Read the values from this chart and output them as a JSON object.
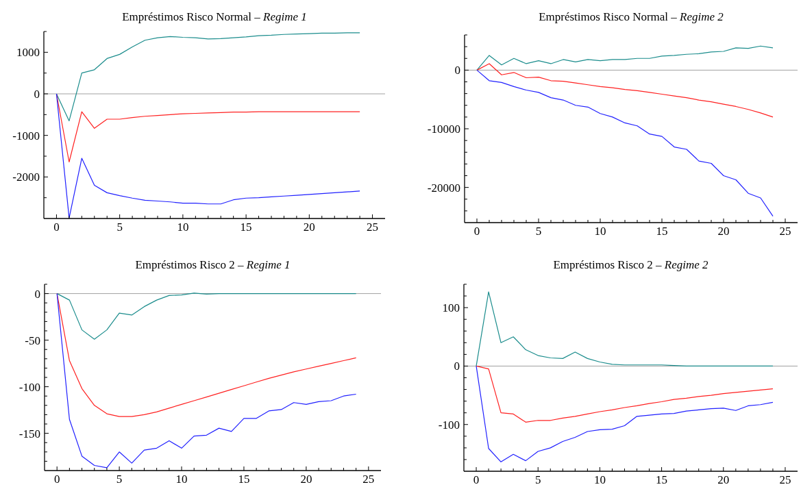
{
  "chart_data": [
    {
      "type": "line",
      "title": "Empréstimos Risco Normal – Regime 1",
      "x": [
        0,
        1,
        2,
        3,
        4,
        5,
        6,
        7,
        8,
        9,
        10,
        11,
        12,
        13,
        14,
        15,
        16,
        17,
        18,
        19,
        20,
        21,
        22,
        23,
        24
      ],
      "xlim": [
        -1,
        26
      ],
      "xticks": [
        0,
        {
          "value": 1,
          "label": null
        },
        {
          "value": 2,
          "label": null
        },
        {
          "value": 3,
          "label": null
        },
        {
          "value": 4,
          "label": null
        },
        5,
        {
          "value": 6,
          "label": null
        },
        {
          "value": 7,
          "label": null
        },
        {
          "value": 8,
          "label": null
        },
        {
          "value": 9,
          "label": null
        },
        10,
        {
          "value": 11,
          "label": null
        },
        {
          "value": 12,
          "label": null
        },
        {
          "value": 13,
          "label": null
        },
        {
          "value": 14,
          "label": null
        },
        15,
        {
          "value": 16,
          "label": null
        },
        {
          "value": 17,
          "label": null
        },
        {
          "value": 18,
          "label": null
        },
        {
          "value": 19,
          "label": null
        },
        20,
        {
          "value": 21,
          "label": null
        },
        {
          "value": 22,
          "label": null
        },
        {
          "value": 23,
          "label": null
        },
        {
          "value": 24,
          "label": null
        },
        25
      ],
      "ylim": [
        -3000,
        1500
      ],
      "yticks": [
        {
          "value": -2500,
          "label": null
        },
        -2000,
        {
          "value": -1500,
          "label": null
        },
        -1000,
        {
          "value": -500,
          "label": null
        },
        0,
        {
          "value": 500,
          "label": null
        },
        1000,
        {
          "value": 1500,
          "label": null
        }
      ],
      "ref_lines": [
        {
          "axis": "y",
          "value": 0,
          "color": "#a0a0a0"
        }
      ],
      "series": [
        {
          "color": "#1a8c8c",
          "values": [
            0,
            -650,
            500,
            580,
            850,
            950,
            1130,
            1290,
            1350,
            1380,
            1360,
            1350,
            1320,
            1330,
            1350,
            1370,
            1400,
            1410,
            1430,
            1440,
            1450,
            1460,
            1460,
            1470,
            1470
          ]
        },
        {
          "color": "#ff2020",
          "values": [
            0,
            -1640,
            -430,
            -830,
            -610,
            -610,
            -570,
            -540,
            -520,
            -500,
            -480,
            -470,
            -460,
            -450,
            -440,
            -440,
            -430,
            -430,
            -430,
            -430,
            -430,
            -430,
            -430,
            -430,
            -430
          ]
        },
        {
          "color": "#2020ff",
          "values": [
            0,
            -2990,
            -1550,
            -2200,
            -2380,
            -2450,
            -2510,
            -2560,
            -2580,
            -2600,
            -2630,
            -2630,
            -2650,
            -2650,
            -2550,
            -2510,
            -2500,
            -2480,
            -2460,
            -2440,
            -2420,
            -2400,
            -2380,
            -2360,
            -2340
          ]
        }
      ]
    },
    {
      "type": "line",
      "title": "Empréstimos Risco Normal – Regime 2",
      "x": [
        0,
        1,
        2,
        3,
        4,
        5,
        6,
        7,
        8,
        9,
        10,
        11,
        12,
        13,
        14,
        15,
        16,
        17,
        18,
        19,
        20,
        21,
        22,
        23,
        24
      ],
      "xlim": [
        -1,
        26
      ],
      "xticks": [
        0,
        {
          "value": 1,
          "label": null
        },
        {
          "value": 2,
          "label": null
        },
        {
          "value": 3,
          "label": null
        },
        {
          "value": 4,
          "label": null
        },
        5,
        {
          "value": 6,
          "label": null
        },
        {
          "value": 7,
          "label": null
        },
        {
          "value": 8,
          "label": null
        },
        {
          "value": 9,
          "label": null
        },
        10,
        {
          "value": 11,
          "label": null
        },
        {
          "value": 12,
          "label": null
        },
        {
          "value": 13,
          "label": null
        },
        {
          "value": 14,
          "label": null
        },
        15,
        {
          "value": 16,
          "label": null
        },
        {
          "value": 17,
          "label": null
        },
        {
          "value": 18,
          "label": null
        },
        {
          "value": 19,
          "label": null
        },
        20,
        {
          "value": 21,
          "label": null
        },
        {
          "value": 22,
          "label": null
        },
        {
          "value": 23,
          "label": null
        },
        {
          "value": 24,
          "label": null
        },
        25
      ],
      "ylim": [
        -26000,
        6000
      ],
      "yticks": [
        {
          "value": -24000,
          "label": null
        },
        {
          "value": -22000,
          "label": null
        },
        -20000,
        {
          "value": -18000,
          "label": null
        },
        {
          "value": -16000,
          "label": null
        },
        {
          "value": -14000,
          "label": null
        },
        {
          "value": -12000,
          "label": null
        },
        -10000,
        {
          "value": -8000,
          "label": null
        },
        {
          "value": -6000,
          "label": null
        },
        {
          "value": -4000,
          "label": null
        },
        {
          "value": -2000,
          "label": null
        },
        0,
        {
          "value": 2000,
          "label": null
        },
        {
          "value": 4000,
          "label": null
        },
        {
          "value": 6000,
          "label": null
        }
      ],
      "ref_lines": [
        {
          "axis": "y",
          "value": 0,
          "color": "#a0a0a0"
        }
      ],
      "series": [
        {
          "color": "#1a8c8c",
          "values": [
            0,
            2500,
            900,
            2000,
            1100,
            1600,
            1100,
            1800,
            1400,
            1800,
            1600,
            1800,
            1800,
            2000,
            2000,
            2400,
            2500,
            2700,
            2800,
            3100,
            3200,
            3800,
            3700,
            4100,
            3800
          ]
        },
        {
          "color": "#ff2020",
          "values": [
            0,
            1100,
            -800,
            -400,
            -1300,
            -1200,
            -1800,
            -1900,
            -2200,
            -2500,
            -2800,
            -3000,
            -3300,
            -3500,
            -3800,
            -4100,
            -4400,
            -4700,
            -5100,
            -5400,
            -5800,
            -6200,
            -6700,
            -7300,
            -8000
          ]
        },
        {
          "color": "#2020ff",
          "values": [
            0,
            -1800,
            -2100,
            -2800,
            -3400,
            -3800,
            -4700,
            -5100,
            -6000,
            -6300,
            -7400,
            -8000,
            -9000,
            -9500,
            -10900,
            -11300,
            -13100,
            -13500,
            -15500,
            -15900,
            -18000,
            -18700,
            -21000,
            -21800,
            -24900
          ]
        }
      ]
    },
    {
      "type": "line",
      "title": "Empréstimos Risco 2 – Regime 1",
      "x": [
        0,
        1,
        2,
        3,
        4,
        5,
        6,
        7,
        8,
        9,
        10,
        11,
        12,
        13,
        14,
        15,
        16,
        17,
        18,
        19,
        20,
        21,
        22,
        23,
        24
      ],
      "xlim": [
        -1,
        26
      ],
      "xticks": [
        0,
        {
          "value": 1,
          "label": null
        },
        {
          "value": 2,
          "label": null
        },
        {
          "value": 3,
          "label": null
        },
        {
          "value": 4,
          "label": null
        },
        5,
        {
          "value": 6,
          "label": null
        },
        {
          "value": 7,
          "label": null
        },
        {
          "value": 8,
          "label": null
        },
        {
          "value": 9,
          "label": null
        },
        10,
        {
          "value": 11,
          "label": null
        },
        {
          "value": 12,
          "label": null
        },
        {
          "value": 13,
          "label": null
        },
        {
          "value": 14,
          "label": null
        },
        15,
        {
          "value": 16,
          "label": null
        },
        {
          "value": 17,
          "label": null
        },
        {
          "value": 18,
          "label": null
        },
        {
          "value": 19,
          "label": null
        },
        20,
        {
          "value": 21,
          "label": null
        },
        {
          "value": 22,
          "label": null
        },
        {
          "value": 23,
          "label": null
        },
        {
          "value": 24,
          "label": null
        },
        25
      ],
      "ylim": [
        -190,
        10
      ],
      "yticks": [
        {
          "value": -180,
          "label": null
        },
        {
          "value": -170,
          "label": null
        },
        {
          "value": -160,
          "label": null
        },
        -150,
        {
          "value": -140,
          "label": null
        },
        {
          "value": -130,
          "label": null
        },
        {
          "value": -120,
          "label": null
        },
        {
          "value": -110,
          "label": null
        },
        -100,
        {
          "value": -90,
          "label": null
        },
        {
          "value": -80,
          "label": null
        },
        {
          "value": -70,
          "label": null
        },
        {
          "value": -60,
          "label": null
        },
        -50,
        {
          "value": -40,
          "label": null
        },
        {
          "value": -30,
          "label": null
        },
        {
          "value": -20,
          "label": null
        },
        {
          "value": -10,
          "label": null
        },
        0,
        {
          "value": 10,
          "label": null
        }
      ],
      "ref_lines": [
        {
          "axis": "y",
          "value": 0,
          "color": "#a0a0a0"
        }
      ],
      "series": [
        {
          "color": "#1a8c8c",
          "values": [
            0,
            -7,
            -39,
            -49,
            -39,
            -21,
            -23,
            -14,
            -7,
            -2,
            -1.5,
            0.5,
            -0.5,
            0,
            0,
            0,
            0,
            0,
            0,
            0,
            0,
            0,
            0,
            0,
            0
          ]
        },
        {
          "color": "#ff2020",
          "values": [
            0,
            -72,
            -102,
            -120,
            -129,
            -132,
            -132,
            -130,
            -127,
            -123,
            -119,
            -115,
            -111,
            -107,
            -103,
            -99,
            -95,
            -91,
            -87.5,
            -84,
            -81,
            -78,
            -75,
            -72,
            -69
          ]
        },
        {
          "color": "#2020ff",
          "values": [
            0,
            -135,
            -174.5,
            -184.5,
            -187,
            -170,
            -182,
            -168,
            -166,
            -158,
            -166,
            -153,
            -152,
            -144.5,
            -148,
            -134,
            -134,
            -126,
            -124.5,
            -117,
            -119,
            -116,
            -115,
            -110,
            -108
          ]
        }
      ]
    },
    {
      "type": "line",
      "title": "Empréstimos Risco 2 – Regime 2",
      "x": [
        0,
        1,
        2,
        3,
        4,
        5,
        6,
        7,
        8,
        9,
        10,
        11,
        12,
        13,
        14,
        15,
        16,
        17,
        18,
        19,
        20,
        21,
        22,
        23,
        24
      ],
      "xlim": [
        -1,
        26
      ],
      "xticks": [
        0,
        {
          "value": 1,
          "label": null
        },
        {
          "value": 2,
          "label": null
        },
        {
          "value": 3,
          "label": null
        },
        {
          "value": 4,
          "label": null
        },
        5,
        {
          "value": 6,
          "label": null
        },
        {
          "value": 7,
          "label": null
        },
        {
          "value": 8,
          "label": null
        },
        {
          "value": 9,
          "label": null
        },
        10,
        {
          "value": 11,
          "label": null
        },
        {
          "value": 12,
          "label": null
        },
        {
          "value": 13,
          "label": null
        },
        {
          "value": 14,
          "label": null
        },
        15,
        {
          "value": 16,
          "label": null
        },
        {
          "value": 17,
          "label": null
        },
        {
          "value": 18,
          "label": null
        },
        {
          "value": 19,
          "label": null
        },
        20,
        {
          "value": 21,
          "label": null
        },
        {
          "value": 22,
          "label": null
        },
        {
          "value": 23,
          "label": null
        },
        {
          "value": 24,
          "label": null
        },
        25
      ],
      "ylim": [
        -180,
        140
      ],
      "yticks": [
        {
          "value": -160,
          "label": null
        },
        {
          "value": -140,
          "label": null
        },
        {
          "value": -120,
          "label": null
        },
        -100,
        {
          "value": -80,
          "label": null
        },
        {
          "value": -60,
          "label": null
        },
        {
          "value": -40,
          "label": null
        },
        {
          "value": -20,
          "label": null
        },
        0,
        {
          "value": 20,
          "label": null
        },
        {
          "value": 40,
          "label": null
        },
        {
          "value": 60,
          "label": null
        },
        {
          "value": 80,
          "label": null
        },
        100,
        {
          "value": 120,
          "label": null
        },
        {
          "value": 140,
          "label": null
        }
      ],
      "ref_lines": [
        {
          "axis": "y",
          "value": 0,
          "color": "#a0a0a0"
        }
      ],
      "series": [
        {
          "color": "#1a8c8c",
          "values": [
            0,
            127,
            40,
            50,
            28,
            18,
            14,
            13,
            24,
            13,
            7,
            3,
            2,
            2,
            2,
            2,
            1,
            0,
            0,
            0,
            0,
            0,
            0,
            0,
            0
          ]
        },
        {
          "color": "#ff2020",
          "values": [
            0,
            -5,
            -80,
            -82,
            -96,
            -93,
            -93,
            -89,
            -86,
            -82,
            -78,
            -75,
            -71,
            -68,
            -64,
            -61,
            -57,
            -55,
            -52,
            -50,
            -47,
            -45,
            -43,
            -41,
            -39
          ]
        },
        {
          "color": "#2020ff",
          "values": [
            0,
            -141,
            -164,
            -151,
            -162,
            -146,
            -140,
            -129,
            -122,
            -112,
            -109,
            -108,
            -102,
            -86,
            -84,
            -82,
            -81,
            -77,
            -75,
            -73,
            -72,
            -76,
            -68,
            -66,
            -62
          ]
        }
      ]
    }
  ]
}
